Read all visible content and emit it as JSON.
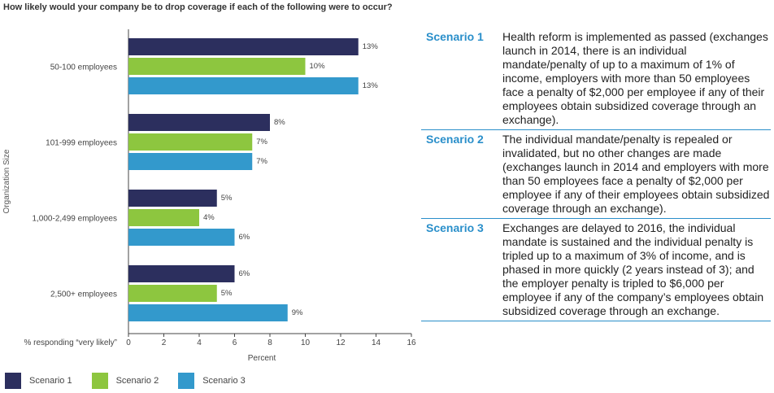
{
  "title": "How likely would your company be to drop coverage if each of the following were to occur?",
  "chart_data": {
    "type": "bar",
    "orientation": "horizontal",
    "categories": [
      "50-100 employees",
      "101-999 employees",
      "1,000-2,499 employees",
      "2,500+ employees"
    ],
    "series": [
      {
        "name": "Scenario 1",
        "values": [
          13,
          8,
          5,
          6
        ],
        "labels": [
          "13%",
          "8%",
          "5%",
          "6%"
        ],
        "color": "#2c2f5e"
      },
      {
        "name": "Scenario 2",
        "values": [
          10,
          7,
          4,
          5
        ],
        "labels": [
          "10%",
          "7%",
          "4%",
          "5%"
        ],
        "color": "#8dc63f"
      },
      {
        "name": "Scenario 3",
        "values": [
          13,
          7,
          6,
          9
        ],
        "labels": [
          "13%",
          "7%",
          "6%",
          "9%"
        ],
        "color": "#3399cc"
      }
    ],
    "xlabel": "Percent",
    "ylabel": "Organization Size",
    "x_axis_prefix": "% responding “very likely”",
    "xlim": [
      0,
      16
    ],
    "xticks": [
      0,
      2,
      4,
      6,
      8,
      10,
      12,
      14,
      16
    ],
    "grid": false,
    "legend_position": "bottom-left"
  },
  "scenarios": [
    {
      "label": "Scenario 1",
      "text": "Health reform is implemented as passed (exchanges launch in 2014, there is an individual mandate/penalty of up to a maximum of 1% of income, employers with more than 50 employees face a penalty of $2,000 per employee if any of their employees obtain subsidized coverage through an exchange)."
    },
    {
      "label": "Scenario 2",
      "text": "The individual mandate/penalty is repealed or invalidated, but no other changes are made (exchanges launch in 2014 and employers with more than 50 employees face a penalty of $2,000 per employee if any of their employees obtain subsidized coverage through an exchange)."
    },
    {
      "label": "Scenario 3",
      "text": "Exchanges are delayed to 2016, the individual mandate is sustained and the individual penalty is tripled up to a maximum of 3% of income, and is phased in more quickly (2 years instead of 3); and the employer penalty is tripled to $6,000 per employee if any of the company’s employees obtain subsidized coverage through an exchange."
    }
  ]
}
